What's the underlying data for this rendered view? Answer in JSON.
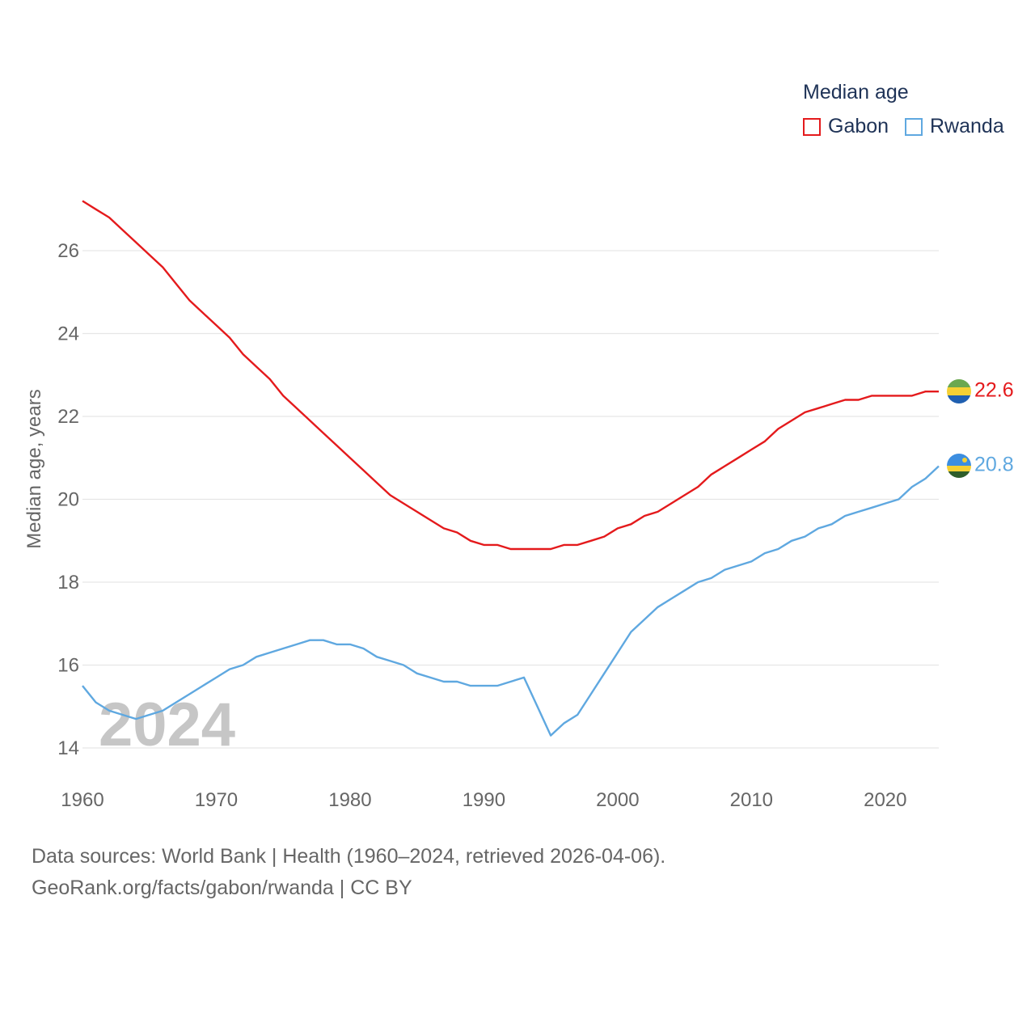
{
  "legend": {
    "title": "Median age",
    "items": [
      {
        "label": "Gabon",
        "color": "#e41a1c"
      },
      {
        "label": "Rwanda",
        "color": "#5fa8e0"
      }
    ]
  },
  "year_watermark": "2024",
  "source": {
    "line1": "Data sources: World Bank | Health (1960–2024, retrieved 2026-04-06).",
    "line2": "GeoRank.org/facts/gabon/rwanda | CC BY"
  },
  "chart_data": {
    "type": "line",
    "title": "Median age",
    "xlabel": "",
    "ylabel": "Median age, years",
    "xlim": [
      1960,
      2024
    ],
    "ylim": [
      13.8,
      27.2
    ],
    "x_ticks": [
      1960,
      1970,
      1980,
      1990,
      2000,
      2010,
      2020
    ],
    "y_ticks": [
      14,
      16,
      18,
      20,
      22,
      24,
      26
    ],
    "grid": true,
    "legend_position": "top-right",
    "x": [
      1960,
      1961,
      1962,
      1963,
      1964,
      1965,
      1966,
      1967,
      1968,
      1969,
      1970,
      1971,
      1972,
      1973,
      1974,
      1975,
      1976,
      1977,
      1978,
      1979,
      1980,
      1981,
      1982,
      1983,
      1984,
      1985,
      1986,
      1987,
      1988,
      1989,
      1990,
      1991,
      1992,
      1993,
      1994,
      1995,
      1996,
      1997,
      1998,
      1999,
      2000,
      2001,
      2002,
      2003,
      2004,
      2005,
      2006,
      2007,
      2008,
      2009,
      2010,
      2011,
      2012,
      2013,
      2014,
      2015,
      2016,
      2017,
      2018,
      2019,
      2020,
      2021,
      2022,
      2023,
      2024
    ],
    "series": [
      {
        "name": "Gabon",
        "color": "#e41a1c",
        "end_label": "22.6",
        "values": [
          27.2,
          27.0,
          26.8,
          26.5,
          26.2,
          25.9,
          25.6,
          25.2,
          24.8,
          24.5,
          24.2,
          23.9,
          23.5,
          23.2,
          22.9,
          22.5,
          22.2,
          21.9,
          21.6,
          21.3,
          21.0,
          20.7,
          20.4,
          20.1,
          19.9,
          19.7,
          19.5,
          19.3,
          19.2,
          19.0,
          18.9,
          18.9,
          18.8,
          18.8,
          18.8,
          18.8,
          18.9,
          18.9,
          19.0,
          19.1,
          19.3,
          19.4,
          19.6,
          19.7,
          19.9,
          20.1,
          20.3,
          20.6,
          20.8,
          21.0,
          21.2,
          21.4,
          21.7,
          21.9,
          22.1,
          22.2,
          22.3,
          22.4,
          22.4,
          22.5,
          22.5,
          22.5,
          22.5,
          22.6,
          22.6
        ]
      },
      {
        "name": "Rwanda",
        "color": "#5fa8e0",
        "end_label": "20.8",
        "values": [
          15.5,
          15.1,
          14.9,
          14.8,
          14.7,
          14.8,
          14.9,
          15.1,
          15.3,
          15.5,
          15.7,
          15.9,
          16.0,
          16.2,
          16.3,
          16.4,
          16.5,
          16.6,
          16.6,
          16.5,
          16.5,
          16.4,
          16.2,
          16.1,
          16.0,
          15.8,
          15.7,
          15.6,
          15.6,
          15.5,
          15.5,
          15.5,
          15.6,
          15.7,
          15.0,
          14.3,
          14.6,
          14.8,
          15.3,
          15.8,
          16.3,
          16.8,
          17.1,
          17.4,
          17.6,
          17.8,
          18.0,
          18.1,
          18.3,
          18.4,
          18.5,
          18.7,
          18.8,
          19.0,
          19.1,
          19.3,
          19.4,
          19.6,
          19.7,
          19.8,
          19.9,
          20.0,
          20.3,
          20.5,
          20.8
        ]
      }
    ]
  }
}
